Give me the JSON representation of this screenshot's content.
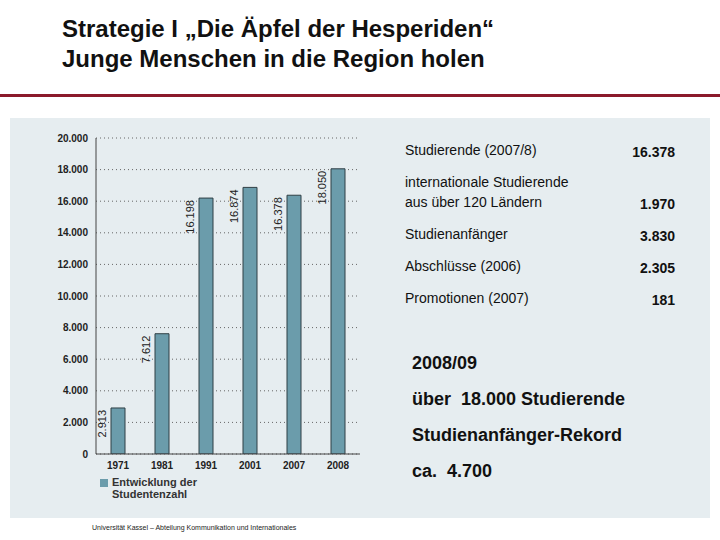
{
  "chart_data": {
    "type": "bar",
    "categories": [
      "1971",
      "1981",
      "1991",
      "2001",
      "2007",
      "2008"
    ],
    "series": [
      {
        "name": "Entwicklung der Studentenzahl",
        "color": "#6b9cab",
        "values": [
          2913,
          7612,
          16198,
          16874,
          16378,
          18050
        ],
        "value_labels": [
          "2.913",
          "7.612",
          "16.198",
          "16.874",
          "16.378",
          "18.050"
        ]
      }
    ],
    "ylim": [
      0,
      20000
    ],
    "yticks": [
      0,
      {
        "value": 2000,
        "label": "2.000"
      },
      {
        "value": 4000,
        "label": "4.000"
      },
      {
        "value": 6000,
        "label": "6.000"
      },
      {
        "value": 8000,
        "label": "8.000"
      },
      {
        "value": 10000,
        "label": "10.000"
      },
      {
        "value": 12000,
        "label": "12.000"
      },
      {
        "value": 14000,
        "label": "14.000"
      },
      {
        "value": 16000,
        "label": "16.000"
      },
      {
        "value": 18000,
        "label": "18.000"
      },
      {
        "value": 20000,
        "label": "20.000"
      }
    ],
    "grid": true,
    "data_labels": true,
    "legend": "bottom-left"
  },
  "slide": {
    "title": [
      "Strategie I „Die Äpfel der Hesperiden“",
      "Junge Menschen in die Region holen"
    ],
    "stats": [
      {
        "label": "Studierende (2007/8)",
        "value": "16.378"
      },
      {
        "label": "internationale Studierende\naus über 120 Ländern",
        "value": "1.970"
      },
      {
        "label": "Studienanfänger",
        "value": "3.830"
      },
      {
        "label": "Abschlüsse (2006)",
        "value": "2.305"
      },
      {
        "label": "Promotionen (2007)",
        "value": "181"
      }
    ],
    "highlight_heading": "2008/09",
    "highlights": [
      "über  18.000 Studierende",
      "Studienanfänger-Rekord",
      "ca.  4.700"
    ],
    "footer": "Universität Kassel – Abteilung Kommunikation und Internationales"
  }
}
